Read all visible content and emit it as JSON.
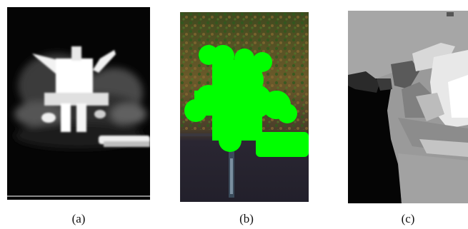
{
  "figure": {
    "panels": [
      {
        "label": "(a)",
        "kind": "grayscale-saliency-map"
      },
      {
        "label": "(b)",
        "kind": "color-photo-with-green-mask",
        "mask_color": "#00ff00"
      },
      {
        "label": "(c)",
        "kind": "grayscale-depth-map"
      }
    ]
  }
}
